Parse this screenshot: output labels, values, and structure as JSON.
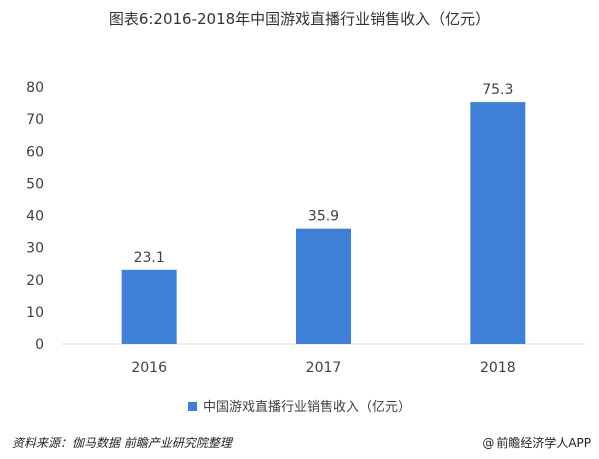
{
  "title": "图表6:2016-2018年中国游戏直播行业销售收入（亿元）",
  "chart_data": {
    "type": "bar",
    "categories": [
      "2016",
      "2017",
      "2018"
    ],
    "series": [
      {
        "name": "中国游戏直播行业销售收入（亿元）",
        "values": [
          23.1,
          35.9,
          75.3
        ]
      }
    ],
    "data_labels": [
      "23.1",
      "35.9",
      "75.3"
    ],
    "ylim": [
      0,
      80
    ],
    "yticks": [
      0,
      10,
      20,
      30,
      40,
      50,
      60,
      70,
      80
    ],
    "grid": false,
    "legend_position": "bottom",
    "bar_color": "#3F7FD6"
  },
  "legend": {
    "label": "中国游戏直播行业销售收入（亿元）",
    "color": "#3F7FD6"
  },
  "footer": {
    "source": "资料来源：伽马数据 前瞻产业研究院整理",
    "brand_icon": "at-sign-icon",
    "brand_icon_glyph": "@",
    "brand": "前瞻经济学人APP"
  }
}
